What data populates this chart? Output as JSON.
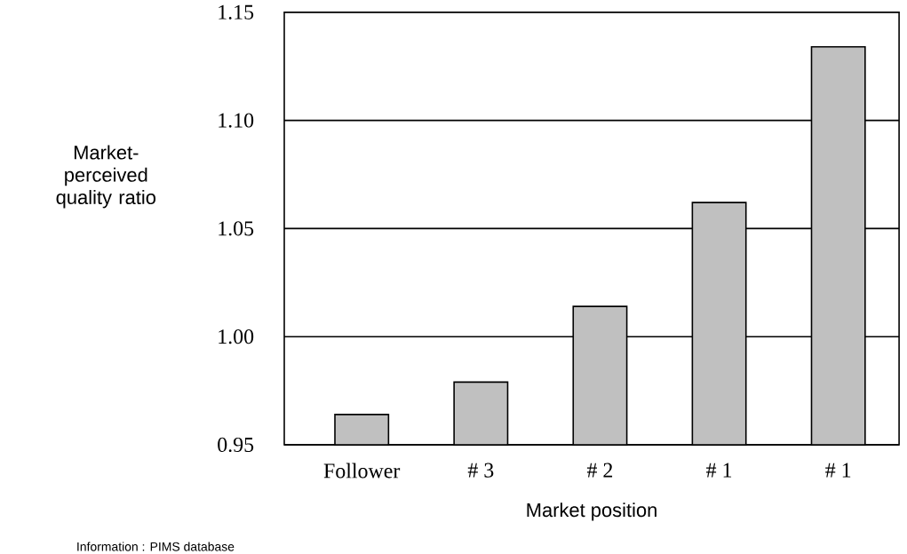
{
  "chart_data": {
    "type": "bar",
    "categories": [
      "Follower",
      "# 3",
      "# 2",
      "# 1",
      "# 1"
    ],
    "values": [
      0.964,
      0.979,
      1.014,
      1.062,
      1.134
    ],
    "color": "#c0c0c0",
    "ylim": [
      0.95,
      1.15
    ],
    "yticks": [
      0.95,
      {
        "value": 1.0,
        "label": "1.00"
      },
      {
        "value": 1.05,
        "label": "1.05"
      },
      {
        "value": 1.1,
        "label": "1.10"
      },
      1.15
    ],
    "grid": "y",
    "xlabel": "Market position",
    "ylabel": "Market-perceived quality ratio",
    "annotations": [
      "Information : PIMS database"
    ]
  }
}
